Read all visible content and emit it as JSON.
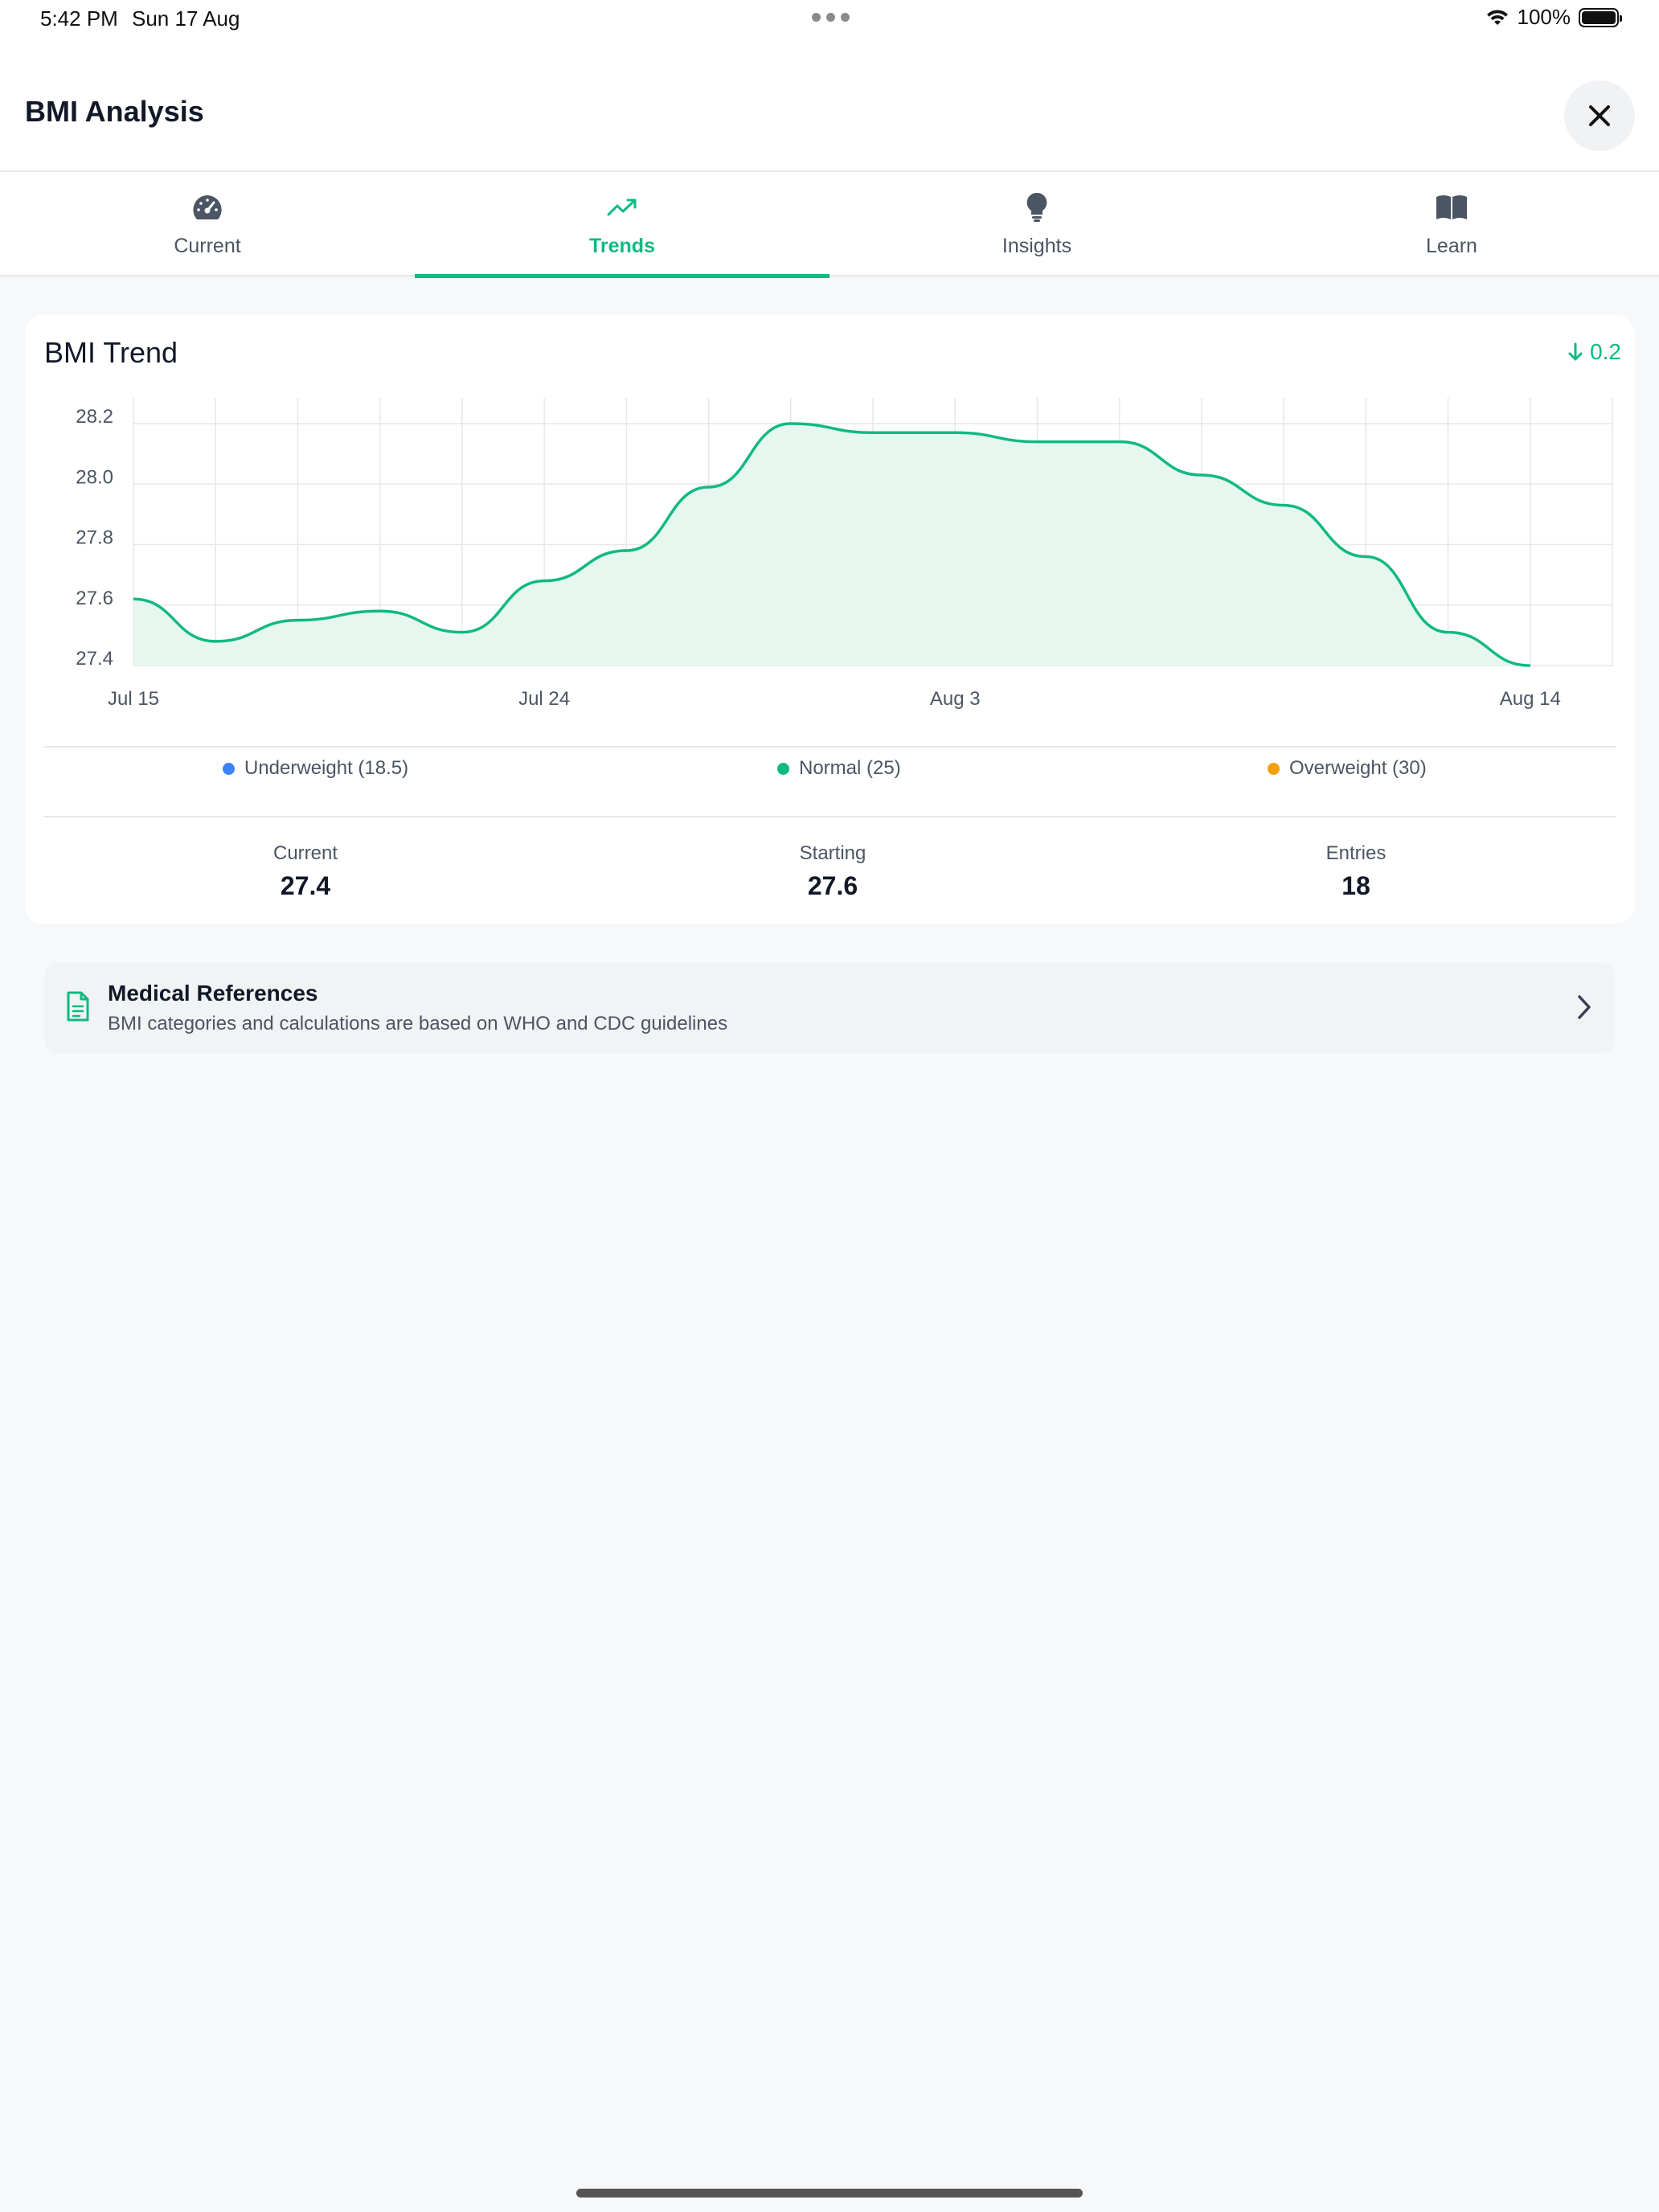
{
  "status_bar": {
    "time": "5:42 PM",
    "date": "Sun 17 Aug",
    "battery": "100%"
  },
  "header": {
    "title": "BMI Analysis"
  },
  "tabs": [
    {
      "label": "Current",
      "icon": "gauge-icon",
      "active": false
    },
    {
      "label": "Trends",
      "icon": "trending-up-icon",
      "active": true
    },
    {
      "label": "Insights",
      "icon": "lightbulb-icon",
      "active": false
    },
    {
      "label": "Learn",
      "icon": "book-open-icon",
      "active": false
    }
  ],
  "trend_card": {
    "title": "BMI Trend",
    "change": "0.2",
    "change_direction": "down",
    "legend": [
      {
        "label": "Underweight (18.5)",
        "color": "#3b82f6"
      },
      {
        "label": "Normal (25)",
        "color": "#10b981"
      },
      {
        "label": "Overweight (30)",
        "color": "#f59e0b"
      }
    ],
    "stats": [
      {
        "label": "Current",
        "value": "27.4"
      },
      {
        "label": "Starting",
        "value": "27.6"
      },
      {
        "label": "Entries",
        "value": "18"
      }
    ]
  },
  "chart_data": {
    "type": "area",
    "x": [
      "Jul 15",
      "Jul 17",
      "Jul 19",
      "Jul 21",
      "Jul 23",
      "Jul 24",
      "Jul 26",
      "Jul 28",
      "Jul 30",
      "Aug 1",
      "Aug 3",
      "Aug 5",
      "Aug 7",
      "Aug 9",
      "Aug 11",
      "Aug 12",
      "Aug 13",
      "Aug 14"
    ],
    "values": [
      27.62,
      27.48,
      27.55,
      27.58,
      27.51,
      27.68,
      27.78,
      27.99,
      28.2,
      28.17,
      28.17,
      28.14,
      28.14,
      28.03,
      27.93,
      27.76,
      27.51,
      27.4
    ],
    "x_ticks": [
      "Jul 15",
      "Jul 24",
      "Aug 3",
      "Aug 14"
    ],
    "y_ticks": [
      "27.4",
      "27.6",
      "27.8",
      "28.0",
      "28.2"
    ],
    "ylim": [
      27.4,
      28.2
    ],
    "line_color": "#10b981",
    "fill_color": "#e6f7f0",
    "grid": true,
    "title": "BMI Trend"
  },
  "references": {
    "title": "Medical References",
    "subtitle": "BMI categories and calculations are based on WHO and CDC guidelines",
    "icon": "document-icon"
  }
}
